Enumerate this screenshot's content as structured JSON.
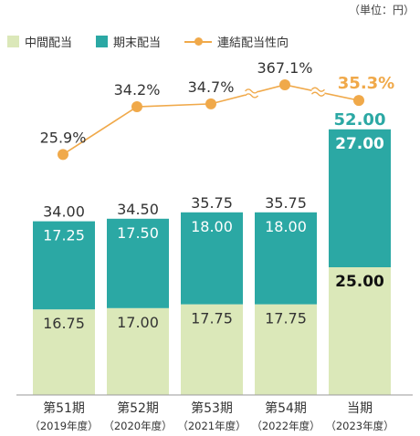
{
  "unit_label": "（単位：円）",
  "colors": {
    "interim": "#dbe8b9",
    "yearend": "#2ba8a4",
    "payout": "#f0a94a",
    "highlight_total": "#2ba8a4",
    "highlight_payout": "#f0a94a"
  },
  "chart_data": {
    "type": "bar",
    "stacked": true,
    "categories": [
      "第51期",
      "第52期",
      "第53期",
      "第54期",
      "当期"
    ],
    "category_sublabels": [
      "（2019年度）",
      "（2020年度）",
      "（2021年度）",
      "（2022年度）",
      "（2023年度）"
    ],
    "series": [
      {
        "name": "中間配当",
        "values": [
          16.75,
          17.0,
          17.75,
          17.75,
          25.0
        ],
        "labels": [
          "16.75",
          "17.00",
          "17.75",
          "17.75",
          "25.00"
        ]
      },
      {
        "name": "期末配当",
        "values": [
          17.25,
          17.5,
          18.0,
          18.0,
          27.0
        ],
        "labels": [
          "17.25",
          "17.50",
          "18.00",
          "18.00",
          "27.00"
        ]
      }
    ],
    "totals": [
      34.0,
      34.5,
      35.75,
      35.75,
      52.0
    ],
    "total_labels": [
      "34.00",
      "34.50",
      "35.75",
      "35.75",
      "52.00"
    ],
    "line": {
      "name": "連結配当性向",
      "values": [
        25.9,
        34.2,
        34.7,
        367.1,
        35.3
      ],
      "labels": [
        "25.9%",
        "34.2%",
        "34.7%",
        "367.1%",
        "35.3%"
      ],
      "broken_axis": true
    },
    "legend_position": "top-left",
    "grid": false
  }
}
